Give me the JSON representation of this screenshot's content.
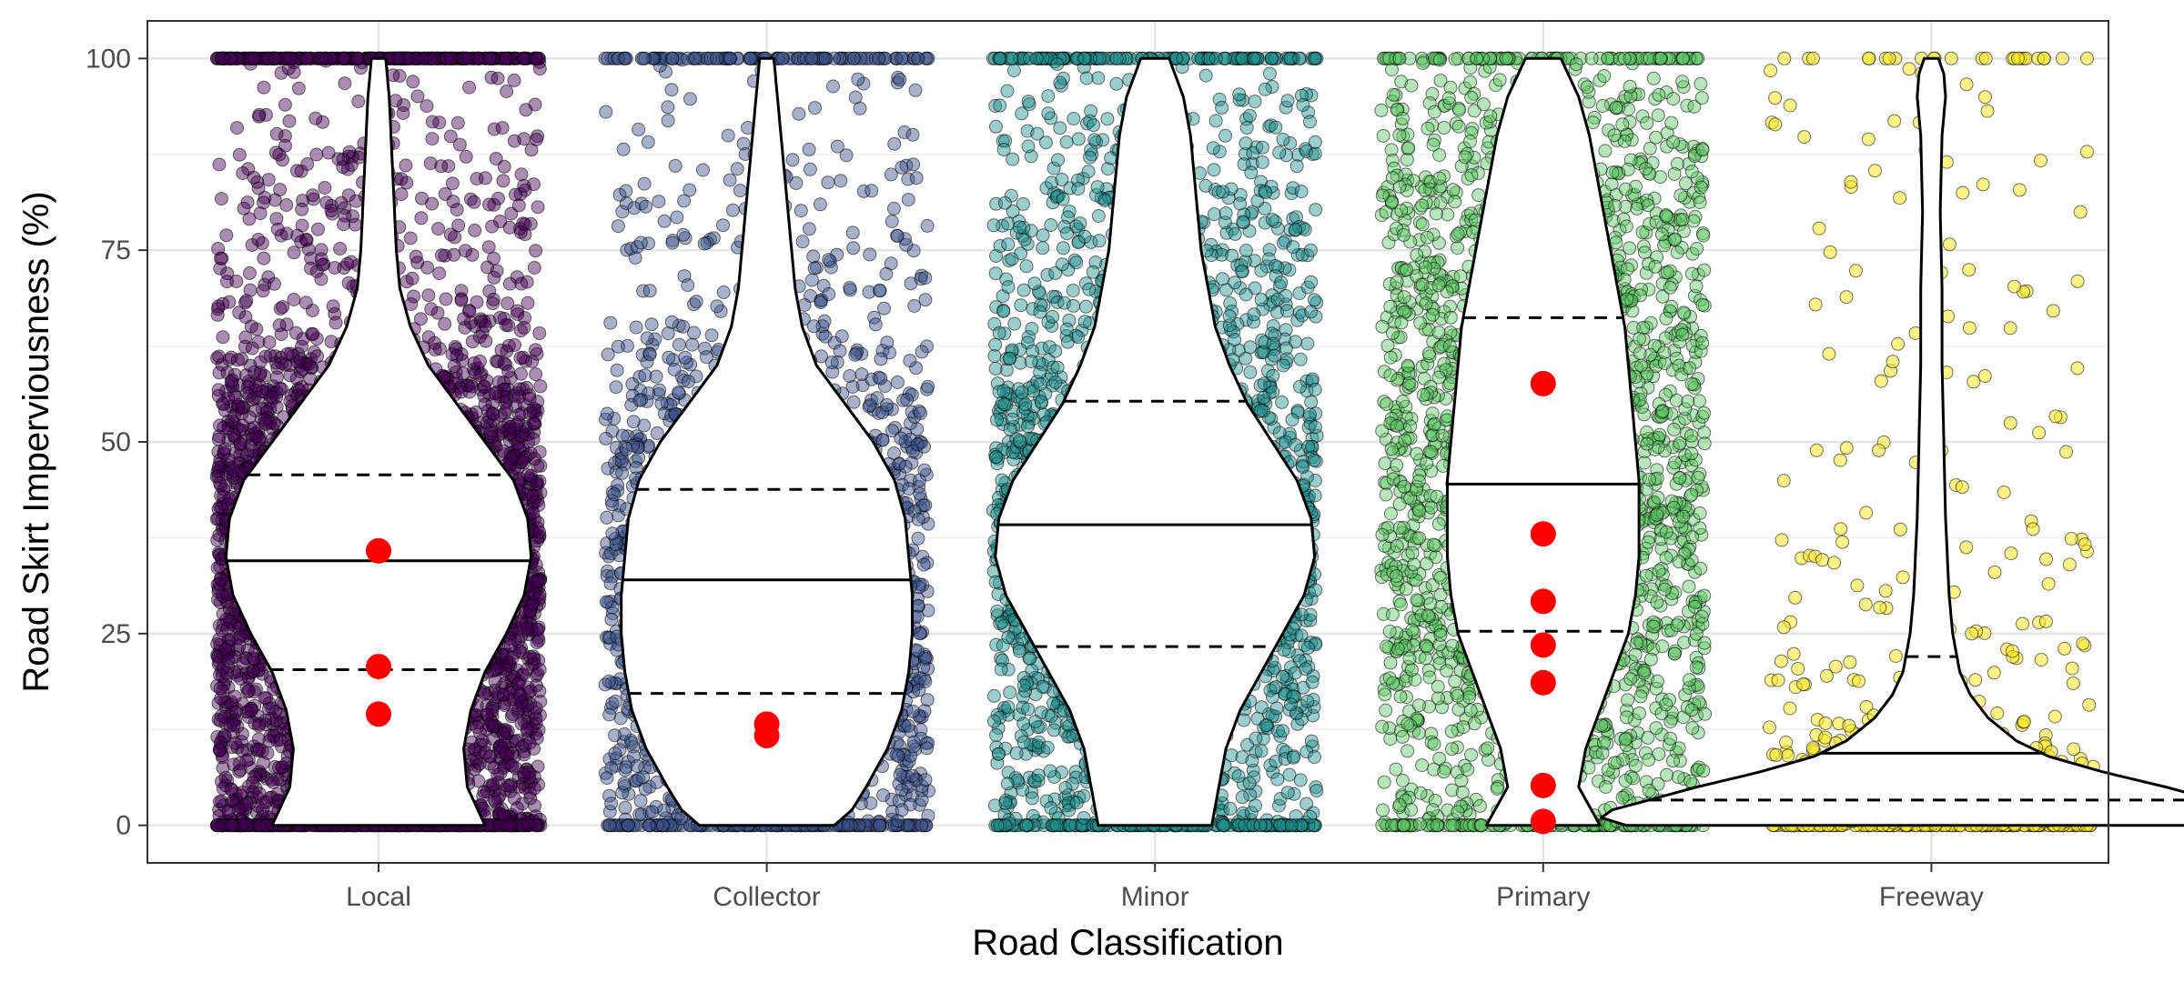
{
  "chart_data": {
    "type": "violin-jitter",
    "xlabel": "Road Classification",
    "ylabel": "Road Skirt Imperviousness (%)",
    "ylim": [
      0,
      100
    ],
    "yticks": [
      0,
      25,
      50,
      75,
      100
    ],
    "categories": [
      "Local",
      "Collector",
      "Minor",
      "Primary",
      "Freeway"
    ],
    "grid": true,
    "series": [
      {
        "category": "Local",
        "color": "#440154",
        "point_alpha": 0.45,
        "quartiles": {
          "q1": 20.3,
          "median": 34.5,
          "q3": 45.7
        },
        "density": [
          [
            0,
            0.3
          ],
          [
            5,
            0.25
          ],
          [
            10,
            0.24
          ],
          [
            15,
            0.26
          ],
          [
            20,
            0.3
          ],
          [
            25,
            0.36
          ],
          [
            30,
            0.41
          ],
          [
            35,
            0.43
          ],
          [
            40,
            0.42
          ],
          [
            45,
            0.38
          ],
          [
            50,
            0.3
          ],
          [
            55,
            0.22
          ],
          [
            60,
            0.14
          ],
          [
            65,
            0.09
          ],
          [
            70,
            0.06
          ],
          [
            75,
            0.05
          ],
          [
            80,
            0.045
          ],
          [
            85,
            0.04
          ],
          [
            90,
            0.035
          ],
          [
            95,
            0.03
          ],
          [
            100,
            0.02
          ]
        ],
        "highlight_points": [
          35.8,
          20.7,
          14.5
        ]
      },
      {
        "category": "Collector",
        "color": "#3b528b",
        "point_alpha": 0.45,
        "quartiles": {
          "q1": 17.2,
          "median": 32.0,
          "q3": 43.8
        },
        "density": [
          [
            0,
            0.19
          ],
          [
            2,
            0.24
          ],
          [
            5,
            0.28
          ],
          [
            10,
            0.34
          ],
          [
            15,
            0.38
          ],
          [
            20,
            0.4
          ],
          [
            25,
            0.41
          ],
          [
            30,
            0.41
          ],
          [
            35,
            0.4
          ],
          [
            40,
            0.39
          ],
          [
            45,
            0.36
          ],
          [
            50,
            0.3
          ],
          [
            55,
            0.22
          ],
          [
            60,
            0.14
          ],
          [
            65,
            0.1
          ],
          [
            70,
            0.08
          ],
          [
            75,
            0.07
          ],
          [
            80,
            0.06
          ],
          [
            85,
            0.05
          ],
          [
            90,
            0.04
          ],
          [
            95,
            0.03
          ],
          [
            100,
            0.02
          ]
        ],
        "highlight_points": [
          13.2,
          11.7
        ]
      },
      {
        "category": "Minor",
        "color": "#21908d",
        "point_alpha": 0.45,
        "quartiles": {
          "q1": 23.3,
          "median": 39.2,
          "q3": 55.3
        },
        "density": [
          [
            0,
            0.16
          ],
          [
            5,
            0.18
          ],
          [
            10,
            0.2
          ],
          [
            15,
            0.24
          ],
          [
            20,
            0.3
          ],
          [
            25,
            0.36
          ],
          [
            30,
            0.42
          ],
          [
            35,
            0.45
          ],
          [
            40,
            0.44
          ],
          [
            45,
            0.4
          ],
          [
            50,
            0.33
          ],
          [
            55,
            0.26
          ],
          [
            60,
            0.21
          ],
          [
            65,
            0.17
          ],
          [
            70,
            0.15
          ],
          [
            75,
            0.13
          ],
          [
            80,
            0.12
          ],
          [
            85,
            0.11
          ],
          [
            90,
            0.1
          ],
          [
            95,
            0.08
          ],
          [
            100,
            0.04
          ]
        ],
        "highlight_points": []
      },
      {
        "category": "Primary",
        "color": "#5dc863",
        "point_alpha": 0.45,
        "quartiles": {
          "q1": 25.3,
          "median": 44.5,
          "q3": 66.2
        },
        "density": [
          [
            0,
            0.16
          ],
          [
            5,
            0.1
          ],
          [
            10,
            0.12
          ],
          [
            15,
            0.16
          ],
          [
            20,
            0.2
          ],
          [
            25,
            0.24
          ],
          [
            30,
            0.26
          ],
          [
            35,
            0.27
          ],
          [
            40,
            0.27
          ],
          [
            45,
            0.27
          ],
          [
            50,
            0.26
          ],
          [
            55,
            0.25
          ],
          [
            60,
            0.24
          ],
          [
            65,
            0.23
          ],
          [
            70,
            0.21
          ],
          [
            75,
            0.19
          ],
          [
            80,
            0.17
          ],
          [
            85,
            0.15
          ],
          [
            90,
            0.13
          ],
          [
            95,
            0.1
          ],
          [
            100,
            0.05
          ]
        ],
        "highlight_points": [
          57.6,
          38.0,
          29.2,
          23.5,
          18.6,
          5.2,
          0.5
        ]
      },
      {
        "category": "Freeway",
        "color": "#fde725",
        "point_alpha": 0.55,
        "quartiles": {
          "q1": 3.3,
          "median": 9.4,
          "q3": 22.0
        },
        "density": [
          [
            0,
            0.86
          ],
          [
            1,
            0.93
          ],
          [
            2,
            0.9
          ],
          [
            3,
            0.82
          ],
          [
            5,
            0.66
          ],
          [
            7,
            0.48
          ],
          [
            9,
            0.33
          ],
          [
            11,
            0.24
          ],
          [
            14,
            0.16
          ],
          [
            17,
            0.11
          ],
          [
            20,
            0.08
          ],
          [
            25,
            0.06
          ],
          [
            30,
            0.05
          ],
          [
            40,
            0.04
          ],
          [
            50,
            0.035
          ],
          [
            60,
            0.03
          ],
          [
            70,
            0.03
          ],
          [
            80,
            0.025
          ],
          [
            90,
            0.03
          ],
          [
            95,
            0.04
          ],
          [
            98,
            0.035
          ],
          [
            100,
            0.02
          ]
        ],
        "highlight_points": []
      }
    ]
  }
}
